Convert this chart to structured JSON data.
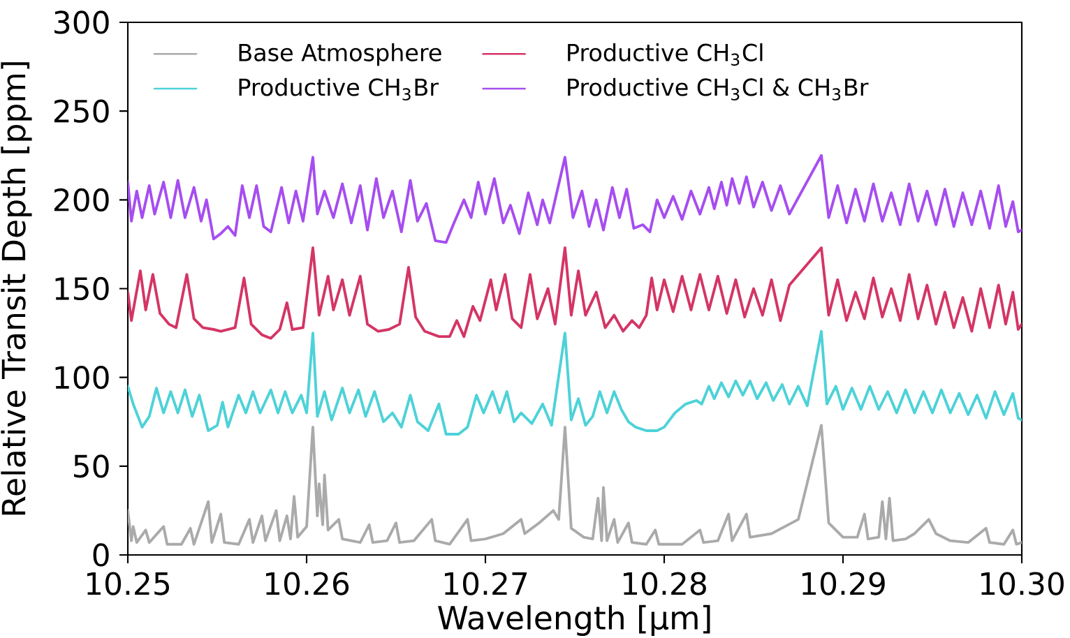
{
  "chart_data": {
    "type": "line",
    "xlabel": "Wavelength [μm]",
    "ylabel": "Relative Transit Depth [ppm]",
    "xlim": [
      10.25,
      10.3
    ],
    "ylim": [
      0,
      300
    ],
    "xticks": [
      {
        "value": 10.25,
        "label": "10.25"
      },
      {
        "value": 10.26,
        "label": "10.26"
      },
      {
        "value": 10.27,
        "label": "10.27"
      },
      {
        "value": 10.28,
        "label": "10.28"
      },
      {
        "value": 10.29,
        "label": "10.29"
      },
      {
        "value": 10.3,
        "label": "10.30"
      }
    ],
    "yticks": [
      0,
      50,
      100,
      150,
      200,
      250,
      300
    ],
    "legend": "top left",
    "marker": "none",
    "line_style": "solid",
    "series": [
      {
        "name": "Base Atmosphere",
        "color": "#aaaaaa",
        "x": [
          10.25,
          10.2502,
          10.2503,
          10.2505,
          10.251,
          10.2512,
          10.252,
          10.2522,
          10.253,
          10.2535,
          10.2537,
          10.2545,
          10.2547,
          10.2552,
          10.2554,
          10.2562,
          10.2568,
          10.257,
          10.2575,
          10.2577,
          10.2583,
          10.2585,
          10.2589,
          10.2591,
          10.2593,
          10.2595,
          10.26,
          10.26035,
          10.2606,
          10.2607,
          10.2609,
          10.261,
          10.2612,
          10.2618,
          10.262,
          10.263,
          10.2635,
          10.2637,
          10.2645,
          10.265,
          10.2652,
          10.266,
          10.267,
          10.2672,
          10.268,
          10.269,
          10.2692,
          10.27,
          10.271,
          10.272,
          10.2722,
          10.273,
          10.2738,
          10.2741,
          10.27445,
          10.2748,
          10.2755,
          10.276,
          10.2763,
          10.2765,
          10.2766,
          10.2768,
          10.2772,
          10.2774,
          10.278,
          10.2782,
          10.279,
          10.2795,
          10.2797,
          10.2805,
          10.281,
          10.282,
          10.2822,
          10.283,
          10.2836,
          10.2838,
          10.2846,
          10.2848,
          10.286,
          10.2875,
          10.28879,
          10.2892,
          10.29,
          10.2908,
          10.2912,
          10.2914,
          10.292,
          10.2922,
          10.2924,
          10.2926,
          10.2928,
          10.2935,
          10.294,
          10.2948,
          10.2952,
          10.296,
          10.297,
          10.298,
          10.2982,
          10.299,
          10.2995,
          10.2997,
          10.3
        ],
        "values": [
          25,
          8,
          16,
          7,
          14,
          7,
          16,
          6,
          6,
          15,
          6,
          30,
          7,
          23,
          7,
          6,
          20,
          7,
          22,
          8,
          25,
          8,
          22,
          9,
          33,
          10,
          16,
          72,
          22,
          40,
          17,
          45,
          14,
          20,
          9,
          7,
          17,
          7,
          8,
          18,
          7,
          8,
          20,
          8,
          6,
          20,
          8,
          9,
          12,
          20,
          12,
          18,
          25,
          20,
          72,
          15,
          10,
          9,
          32,
          8,
          38,
          8,
          20,
          7,
          18,
          7,
          6,
          14,
          6,
          6,
          6,
          14,
          7,
          8,
          23,
          8,
          23,
          10,
          12,
          20,
          73,
          18,
          10,
          10,
          23,
          9,
          10,
          30,
          9,
          32,
          8,
          9,
          12,
          20,
          12,
          8,
          7,
          15,
          7,
          6,
          14,
          6,
          7
        ]
      },
      {
        "name": "Productive CH$_{3}$Br",
        "color": "#4dd2d8",
        "x": [
          10.25,
          10.2503,
          10.2508,
          10.2512,
          10.2516,
          10.252,
          10.2524,
          10.2528,
          10.2532,
          10.2536,
          10.254,
          10.2545,
          10.255,
          10.2553,
          10.2556,
          10.2562,
          10.2566,
          10.257,
          10.2574,
          10.258,
          10.2584,
          10.2588,
          10.2592,
          10.2597,
          10.26,
          10.26035,
          10.2606,
          10.261,
          10.2614,
          10.262,
          10.2624,
          10.2629,
          10.2633,
          10.2638,
          10.2643,
          10.2648,
          10.2653,
          10.2658,
          10.2662,
          10.2668,
          10.2674,
          10.2678,
          10.2685,
          10.269,
          10.2695,
          10.2699,
          10.2704,
          10.2708,
          10.2712,
          10.2716,
          10.272,
          10.2726,
          10.2732,
          10.2737,
          10.27445,
          10.2748,
          10.2752,
          10.2756,
          10.276,
          10.2764,
          10.2768,
          10.2772,
          10.2776,
          10.278,
          10.2784,
          10.279,
          10.2796,
          10.28,
          10.2806,
          10.2812,
          10.2818,
          10.2821,
          10.2825,
          10.2828,
          10.2832,
          10.2836,
          10.284,
          10.2844,
          10.2848,
          10.2852,
          10.2857,
          10.2861,
          10.2866,
          10.287,
          10.2875,
          10.288,
          10.28879,
          10.2891,
          10.2896,
          10.29,
          10.2905,
          10.291,
          10.2915,
          10.292,
          10.2925,
          10.293,
          10.2935,
          10.294,
          10.2945,
          10.295,
          10.2955,
          10.296,
          10.2965,
          10.297,
          10.2975,
          10.298,
          10.2985,
          10.299,
          10.2995,
          10.2998,
          10.3
        ],
        "values": [
          95,
          85,
          72,
          78,
          94,
          80,
          92,
          80,
          93,
          78,
          90,
          70,
          73,
          86,
          72,
          90,
          80,
          92,
          80,
          93,
          80,
          92,
          80,
          90,
          80,
          125,
          78,
          92,
          76,
          94,
          80,
          93,
          78,
          92,
          75,
          80,
          72,
          90,
          75,
          70,
          85,
          68,
          68,
          72,
          90,
          80,
          92,
          80,
          92,
          75,
          80,
          74,
          85,
          73,
          125,
          76,
          88,
          73,
          78,
          92,
          80,
          92,
          82,
          75,
          72,
          70,
          70,
          72,
          80,
          85,
          87,
          85,
          95,
          88,
          97,
          89,
          98,
          90,
          98,
          88,
          97,
          87,
          96,
          85,
          95,
          84,
          126,
          85,
          95,
          82,
          94,
          82,
          95,
          82,
          92,
          80,
          93,
          80,
          92,
          80,
          93,
          80,
          91,
          79,
          90,
          77,
          92,
          79,
          91,
          77,
          76
        ]
      },
      {
        "name": "Productive CH$_{3}$Cl",
        "color": "#d43565",
        "x": [
          10.25,
          10.2502,
          10.2507,
          10.251,
          10.2514,
          10.2518,
          10.2523,
          10.2527,
          10.2533,
          10.2537,
          10.2542,
          10.2548,
          10.2552,
          10.256,
          10.2565,
          10.2569,
          10.2575,
          10.258,
          10.2585,
          10.2589,
          10.2592,
          10.2598,
          10.26035,
          10.2607,
          10.2612,
          10.2615,
          10.262,
          10.2624,
          10.263,
          10.2634,
          10.264,
          10.2646,
          10.2652,
          10.2657,
          10.2661,
          10.2666,
          10.2674,
          10.268,
          10.2684,
          10.2688,
          10.2693,
          10.2697,
          10.2703,
          10.2706,
          10.2711,
          10.2715,
          10.272,
          10.2725,
          10.2729,
          10.2735,
          10.2739,
          10.27445,
          10.2748,
          10.2752,
          10.2756,
          10.2762,
          10.2767,
          10.2772,
          10.2777,
          10.2782,
          10.2786,
          10.279,
          10.2793,
          10.2796,
          10.28,
          10.2805,
          10.281,
          10.2815,
          10.282,
          10.2825,
          10.283,
          10.2835,
          10.284,
          10.2845,
          10.285,
          10.2855,
          10.286,
          10.2865,
          10.287,
          10.28879,
          10.2892,
          10.2897,
          10.2902,
          10.2907,
          10.2912,
          10.2917,
          10.2922,
          10.2927,
          10.2932,
          10.2937,
          10.2942,
          10.2947,
          10.2952,
          10.2957,
          10.2962,
          10.2967,
          10.2972,
          10.2977,
          10.2982,
          10.2987,
          10.2991,
          10.2995,
          10.2998,
          10.3
        ],
        "values": [
          148,
          132,
          160,
          138,
          158,
          136,
          130,
          128,
          158,
          133,
          128,
          127,
          126,
          128,
          156,
          130,
          124,
          122,
          127,
          142,
          127,
          128,
          173,
          135,
          157,
          138,
          155,
          135,
          157,
          130,
          126,
          127,
          130,
          162,
          134,
          126,
          123,
          123,
          132,
          123,
          140,
          132,
          155,
          138,
          158,
          133,
          128,
          158,
          133,
          150,
          130,
          173,
          135,
          160,
          135,
          148,
          128,
          135,
          126,
          132,
          128,
          135,
          156,
          138,
          155,
          137,
          157,
          138,
          158,
          138,
          157,
          136,
          155,
          134,
          150,
          135,
          155,
          132,
          152,
          173,
          135,
          155,
          132,
          148,
          133,
          156,
          134,
          150,
          132,
          158,
          133,
          152,
          130,
          148,
          128,
          145,
          126,
          150,
          128,
          152,
          130,
          148,
          127,
          130
        ]
      },
      {
        "name": "Productive CH$_{3}$Cl & CH$_{3}$Br",
        "color": "#a64df0",
        "x": [
          10.25,
          10.2502,
          10.2505,
          10.2508,
          10.2512,
          10.2515,
          10.252,
          10.2524,
          10.2528,
          10.2532,
          10.2537,
          10.2541,
          10.2544,
          10.2548,
          10.2552,
          10.2556,
          10.256,
          10.2564,
          10.2568,
          10.2572,
          10.2576,
          10.258,
          10.2586,
          10.259,
          10.2594,
          10.2598,
          10.26035,
          10.2606,
          10.261,
          10.2615,
          10.262,
          10.2625,
          10.263,
          10.2634,
          10.2639,
          10.2643,
          10.2648,
          10.2653,
          10.2658,
          10.2662,
          10.2667,
          10.2672,
          10.2678,
          10.2682,
          10.2688,
          10.2692,
          10.2696,
          10.27,
          10.2705,
          10.271,
          10.2714,
          10.2719,
          10.2724,
          10.2729,
          10.2732,
          10.2736,
          10.27445,
          10.2749,
          10.2754,
          10.2758,
          10.2762,
          10.2766,
          10.2771,
          10.2775,
          10.2779,
          10.2783,
          10.2788,
          10.2792,
          10.2796,
          10.28,
          10.2805,
          10.281,
          10.2815,
          10.282,
          10.2825,
          10.2828,
          10.2832,
          10.2835,
          10.2838,
          10.2842,
          10.2846,
          10.285,
          10.2855,
          10.286,
          10.2865,
          10.287,
          10.28879,
          10.2892,
          10.2897,
          10.2902,
          10.2907,
          10.2912,
          10.2917,
          10.2922,
          10.2927,
          10.2932,
          10.2937,
          10.2942,
          10.2947,
          10.2952,
          10.2957,
          10.2962,
          10.2967,
          10.2972,
          10.2977,
          10.2982,
          10.2987,
          10.2991,
          10.2995,
          10.2998,
          10.3
        ],
        "values": [
          210,
          188,
          205,
          190,
          208,
          192,
          210,
          190,
          211,
          190,
          207,
          188,
          200,
          178,
          181,
          185,
          180,
          208,
          190,
          208,
          185,
          182,
          207,
          187,
          205,
          188,
          224,
          192,
          205,
          190,
          209,
          187,
          208,
          183,
          212,
          190,
          205,
          182,
          211,
          188,
          198,
          177,
          176,
          186,
          200,
          190,
          210,
          192,
          212,
          187,
          197,
          181,
          204,
          186,
          200,
          187,
          224,
          190,
          205,
          185,
          200,
          183,
          207,
          190,
          206,
          184,
          186,
          182,
          200,
          190,
          202,
          189,
          205,
          192,
          207,
          195,
          210,
          197,
          212,
          198,
          213,
          196,
          210,
          194,
          208,
          192,
          225,
          190,
          208,
          187,
          206,
          188,
          209,
          188,
          204,
          186,
          209,
          188,
          205,
          186,
          206,
          185,
          204,
          186,
          205,
          184,
          208,
          185,
          199,
          182,
          183
        ]
      }
    ]
  }
}
